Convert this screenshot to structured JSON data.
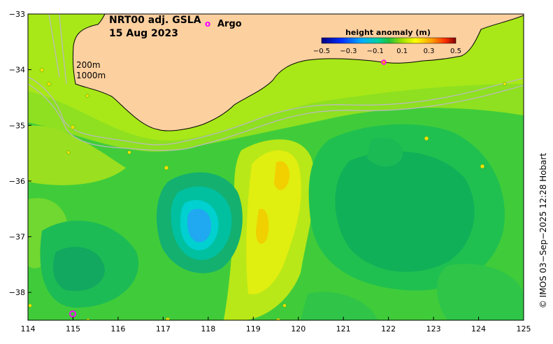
{
  "title": {
    "product": "NRT00 adj. GSLA",
    "date": "15 Aug 2023"
  },
  "legend": {
    "argo_marker": "o",
    "argo_label": "Argo",
    "argo_color": "#ff00ff"
  },
  "isobaths": {
    "label_200": "200m",
    "label_1000": "1000m",
    "line_color": "#bbbbbb"
  },
  "colorbar": {
    "title": "height anomaly (m)",
    "ticks": [
      "−0.5",
      "−0.3",
      "−0.1",
      "0.1",
      "0.3",
      "0.5"
    ],
    "colors": [
      "#000080",
      "#0040ff",
      "#00c0ff",
      "#00e0a0",
      "#00c060",
      "#40d040",
      "#a0e020",
      "#ffff00",
      "#ffb000",
      "#ff4000",
      "#800000"
    ]
  },
  "credit": "© IMOS 03−Sep−2025 12:28 Hobart",
  "axes": {
    "x_ticks": [
      "114",
      "115",
      "116",
      "117",
      "118",
      "119",
      "120",
      "121",
      "122",
      "123",
      "124",
      "125"
    ],
    "y_ticks": [
      "−33",
      "−34",
      "−35",
      "−36",
      "−37",
      "−38"
    ],
    "x_range": [
      114,
      125
    ],
    "y_range": [
      -38.5,
      -33
    ]
  },
  "colors": {
    "land": "#fdd0a0",
    "base_sla": "#40d040"
  }
}
